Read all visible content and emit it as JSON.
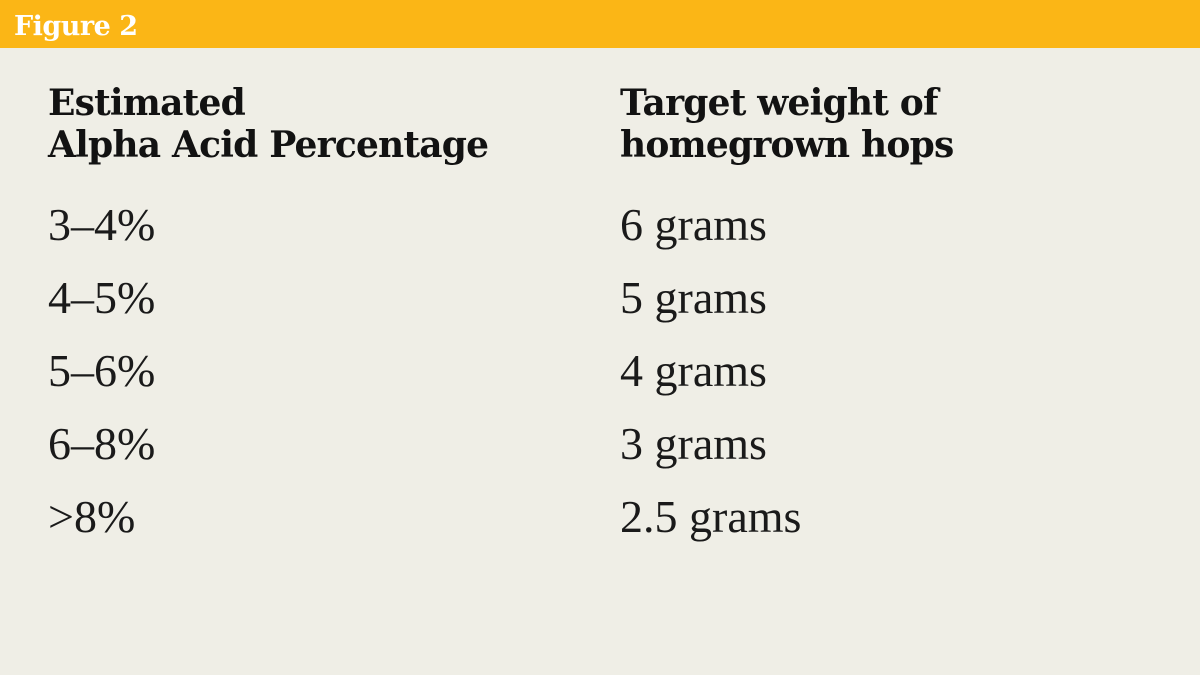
{
  "figure_label": "Figure 2",
  "colors": {
    "header_bar": "#FBB616",
    "background": "#EFEEE6",
    "figure_label_text": "#FFFFFF",
    "text": "#121212"
  },
  "table": {
    "columns": [
      {
        "header_line1": "Estimated",
        "header_line2": "Alpha Acid Percentage"
      },
      {
        "header_line1": "Target weight of",
        "header_line2": "homegrown hops"
      }
    ],
    "rows": [
      {
        "alpha_acid": "3–4%",
        "weight": "6 grams"
      },
      {
        "alpha_acid": "4–5%",
        "weight": "5 grams"
      },
      {
        "alpha_acid": "5–6%",
        "weight": "4 grams"
      },
      {
        "alpha_acid": "6–8%",
        "weight": "3 grams"
      },
      {
        "alpha_acid": ">8%",
        "weight": "2.5 grams"
      }
    ]
  },
  "chart_data": {
    "type": "table",
    "title": "Figure 2",
    "columns": [
      "Estimated Alpha Acid Percentage",
      "Target weight of homegrown hops"
    ],
    "rows": [
      [
        "3–4%",
        "6 grams"
      ],
      [
        "4–5%",
        "5 grams"
      ],
      [
        "5–6%",
        "4 grams"
      ],
      [
        "6–8%",
        "3 grams"
      ],
      [
        ">8%",
        "2.5 grams"
      ]
    ]
  }
}
